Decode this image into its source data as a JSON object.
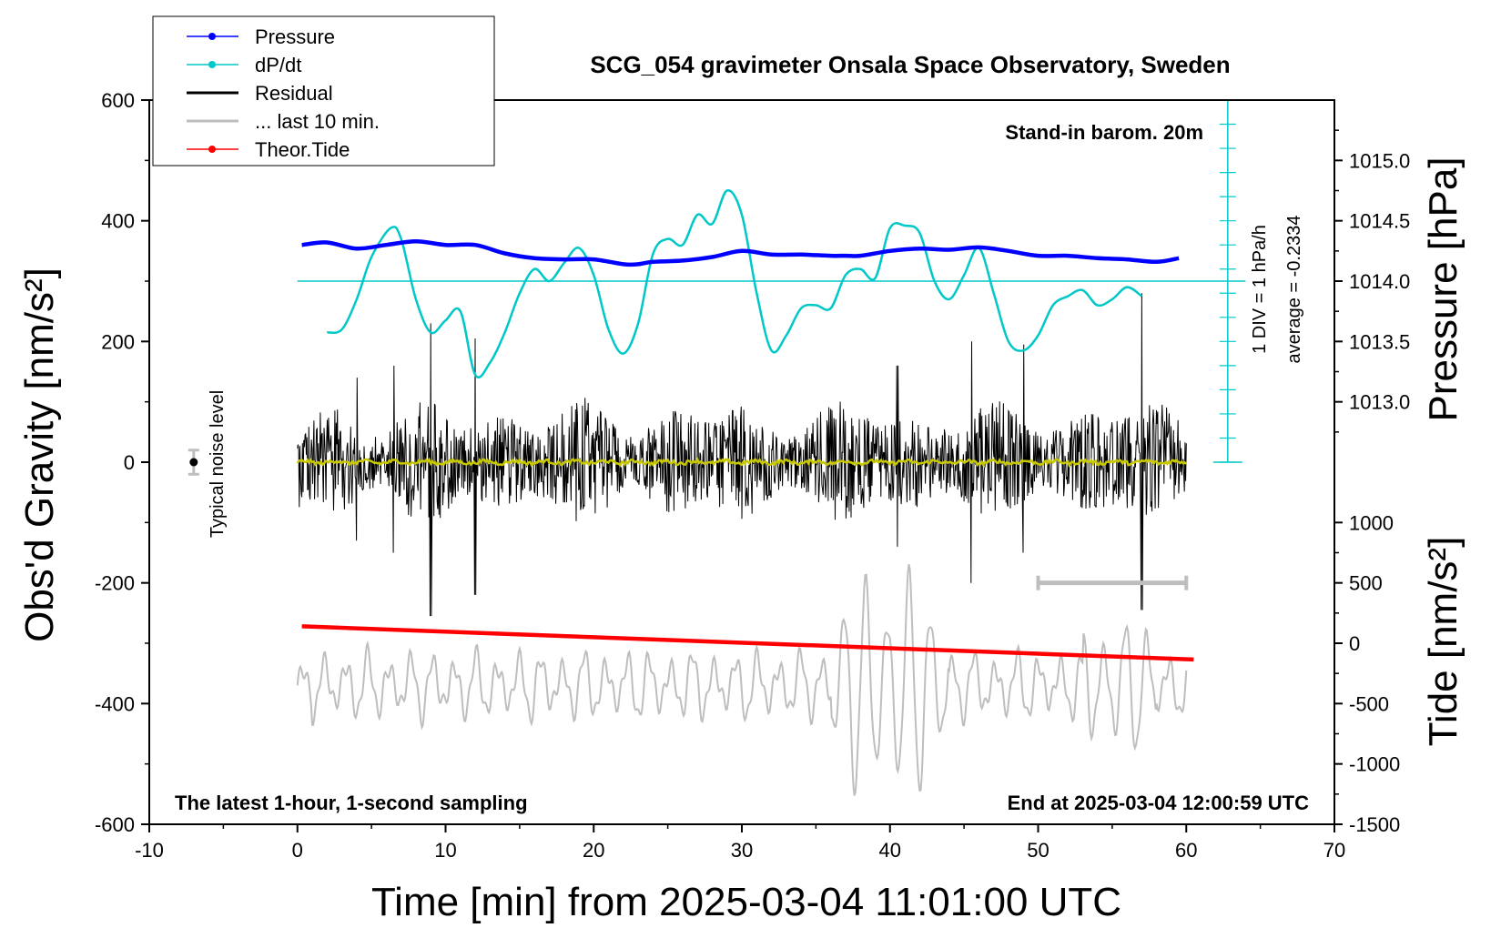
{
  "chart_data": {
    "type": "line",
    "title": "SCG_054 gravimeter Onsala Space Observatory, Sweden",
    "xlabel": "Time [min] from 2025-03-04 11:01:00 UTC",
    "ylabel_left": "Obs'd Gravity [nm/s²]",
    "ylabel_right_top": "Pressure [hPa]",
    "ylabel_right_bottom": "Tide [nm/s²]",
    "xlim": [
      -10,
      70
    ],
    "ylim_left": [
      -600,
      600
    ],
    "pressure_ylim": [
      1012.5,
      1015.5
    ],
    "tide_ylim": [
      -1500,
      1500
    ],
    "x_ticks": [
      "-10",
      "0",
      "10",
      "20",
      "30",
      "40",
      "50",
      "60",
      "70"
    ],
    "y_ticks_left": [
      "600",
      "400",
      "200",
      "0",
      "-200",
      "-400",
      "-600"
    ],
    "pressure_ticks": [
      "1015.0",
      "1014.5",
      "1014.0",
      "1013.5",
      "1013.0"
    ],
    "tide_ticks": [
      "1000",
      "500",
      "0",
      "-500",
      "-1000",
      "-1500"
    ],
    "legend": [
      {
        "label": "Pressure",
        "color": "#0000ff",
        "marker": "dot"
      },
      {
        "label": "dP/dt",
        "color": "#00c8c8",
        "marker": "dot"
      },
      {
        "label": "Residual",
        "color": "#000000",
        "marker": "none"
      },
      {
        "label": "... last 10 min.",
        "color": "#bebebe",
        "marker": "none"
      },
      {
        "label": "Theor.Tide",
        "color": "#ff0000",
        "marker": "dot"
      }
    ],
    "annotations": {
      "barometer": "Stand-in barom. 20m",
      "sampling": "The latest 1-hour, 1-second sampling",
      "end_time": "End at 2025-03-04 12:00:59 UTC",
      "noise": "Typical noise level",
      "dpdt_scale": "1 DIV = 1 hPa/h",
      "dpdt_average": "average = -0.2334"
    },
    "series": [
      {
        "name": "Pressure",
        "axis": "pressure",
        "color": "#0000ff",
        "x": [
          0.3,
          2,
          4,
          6,
          8,
          10,
          12,
          14,
          16,
          18,
          20,
          22,
          23,
          24,
          26,
          28,
          30,
          32,
          34,
          36,
          37,
          38,
          40,
          42,
          44,
          46,
          48,
          50,
          52,
          54,
          56,
          58,
          59.5
        ],
        "values": [
          1014.3,
          1014.32,
          1014.27,
          1014.3,
          1014.33,
          1014.3,
          1014.3,
          1014.23,
          1014.19,
          1014.18,
          1014.18,
          1014.14,
          1014.14,
          1014.16,
          1014.17,
          1014.2,
          1014.25,
          1014.22,
          1014.22,
          1014.21,
          1014.21,
          1014.21,
          1014.25,
          1014.27,
          1014.26,
          1014.28,
          1014.25,
          1014.21,
          1014.21,
          1014.19,
          1014.18,
          1014.16,
          1014.19
        ]
      },
      {
        "name": "dP/dt",
        "axis": "gravity",
        "color": "#00c8c8",
        "baseline": 300,
        "x": [
          2,
          3,
          4,
          5,
          6.3,
          7,
          8,
          9,
          10,
          11,
          12,
          13,
          14,
          15,
          16,
          17,
          18,
          19,
          20,
          21,
          22,
          23,
          24,
          25,
          26,
          27,
          28,
          29,
          30,
          31,
          32,
          33,
          34,
          35,
          36,
          37,
          38,
          39,
          40,
          41,
          42,
          43,
          44,
          45,
          46,
          47,
          48,
          49,
          50,
          51,
          52,
          53,
          54,
          55,
          56,
          57
        ],
        "values": [
          215,
          220,
          270,
          340,
          388,
          370,
          270,
          215,
          235,
          250,
          145,
          165,
          215,
          280,
          320,
          300,
          330,
          355,
          310,
          220,
          180,
          230,
          345,
          370,
          360,
          410,
          395,
          450,
          410,
          280,
          185,
          210,
          255,
          260,
          255,
          310,
          320,
          305,
          388,
          392,
          380,
          300,
          270,
          310,
          355,
          280,
          200,
          185,
          210,
          260,
          275,
          285,
          260,
          270,
          290,
          275
        ]
      },
      {
        "name": "Theor.Tide",
        "axis": "gravity",
        "color": "#ff0000",
        "x": [
          0.3,
          60.5
        ],
        "values": [
          -272,
          -327
        ]
      },
      {
        "name": "Residual",
        "axis": "gravity",
        "color": "#000000",
        "description_range": "oscillating about 0 with typical amplitude about 120 and spikes near x = 9, 12, 45.5, 57",
        "x": [
          0,
          9,
          12,
          45.5,
          49,
          57,
          60
        ],
        "values": [
          0,
          230,
          200,
          210,
          200,
          280,
          0
        ]
      }
    ],
    "noise_marker": {
      "x": -7,
      "y": 0,
      "range": [
        -20,
        20
      ]
    },
    "last10_bar": {
      "x": [
        50,
        60
      ],
      "y": -200
    }
  }
}
